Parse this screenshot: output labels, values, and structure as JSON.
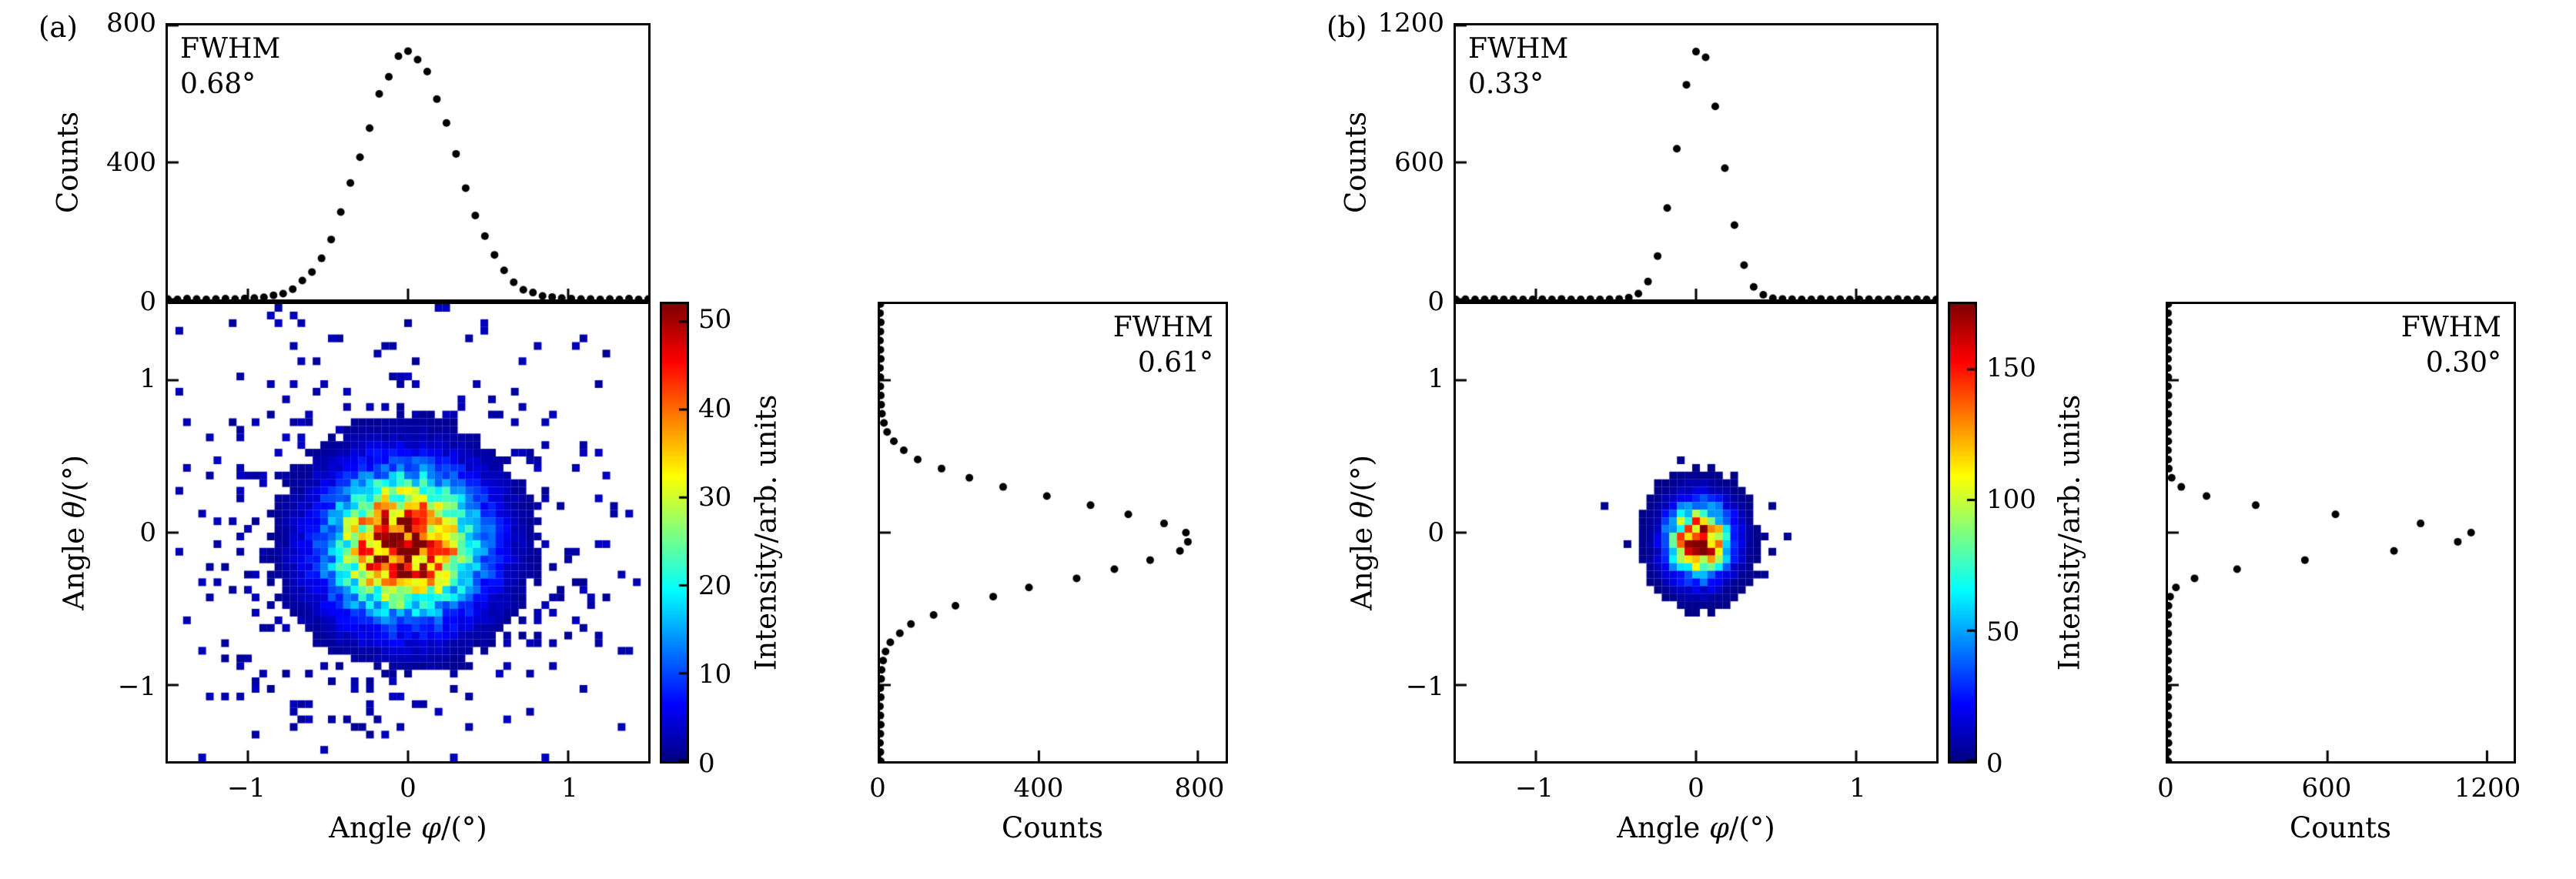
{
  "figure": {
    "background": "#ffffff",
    "accent": "#000000",
    "colormap": "jet"
  },
  "chart_data": {
    "panels": [
      {
        "label": "(a)",
        "top_profile": {
          "type": "scatter",
          "ylabel": "Counts",
          "fwhm_label": "FWHM",
          "fwhm_value": "0.68°",
          "ylim": [
            0,
            800
          ],
          "yticks": [
            0,
            400,
            800
          ],
          "ytick_labels": [
            "0",
            "400",
            "800"
          ],
          "xlim": [
            -1.5,
            1.5
          ],
          "xticks": [
            -1,
            0,
            1
          ],
          "x_start": -1.5,
          "x_step": 0.06,
          "values": [
            1,
            0,
            2,
            1,
            0,
            1,
            2,
            1,
            3,
            4,
            6,
            12,
            17,
            30,
            55,
            80,
            120,
            175,
            255,
            340,
            415,
            500,
            600,
            650,
            710,
            725,
            700,
            665,
            585,
            515,
            425,
            325,
            245,
            185,
            130,
            85,
            50,
            28,
            20,
            10,
            7,
            4,
            2,
            1,
            1,
            0,
            1,
            0,
            2,
            0,
            1
          ]
        },
        "heatmap": {
          "type": "heatmap",
          "xlabel_parts": [
            "Angle ",
            "φ",
            "/(°)"
          ],
          "ylabel_parts": [
            "Angle ",
            "θ",
            "/(°)"
          ],
          "xlim": [
            -1.5,
            1.5
          ],
          "ylim": [
            -1.5,
            1.5
          ],
          "xticks": [
            -1,
            0,
            1
          ],
          "xtick_labels": [
            "−1",
            "0",
            "1"
          ],
          "yticks": [
            1,
            0,
            -1
          ],
          "ytick_labels": [
            "1",
            "0",
            "−1"
          ],
          "bins": [
            63,
            60
          ],
          "center": [
            -0.02,
            -0.08
          ],
          "sigma": [
            0.3,
            0.3
          ],
          "peak": 52,
          "noise_prob": 0.3,
          "noise_sigma": 0.75,
          "seed": 7
        },
        "colorbar": {
          "label": "Intensity/arb. units",
          "ticks": [
            0,
            10,
            20,
            30,
            40,
            50
          ],
          "tick_labels": [
            "0",
            "10",
            "20",
            "30",
            "40",
            "50"
          ],
          "max": 52
        },
        "right_profile": {
          "type": "scatter",
          "xlabel": "Counts",
          "fwhm_label": "FWHM",
          "fwhm_value": "0.61°",
          "xlim": [
            0,
            870
          ],
          "xticks": [
            0,
            400,
            800
          ],
          "xtick_labels": [
            "0",
            "400",
            "800"
          ],
          "ylim": [
            -1.5,
            1.5
          ],
          "yticks": [
            -1,
            0,
            1
          ],
          "y_start": -1.5,
          "y_step": 0.06,
          "values": [
            2,
            1,
            0,
            1,
            2,
            1,
            0,
            2,
            1,
            3,
            4,
            8,
            14,
            26,
            50,
            78,
            135,
            190,
            285,
            375,
            495,
            590,
            680,
            755,
            775,
            770,
            715,
            625,
            530,
            420,
            310,
            225,
            155,
            95,
            60,
            35,
            18,
            10,
            5,
            3,
            2,
            1,
            1,
            0,
            2,
            1,
            0,
            1,
            2,
            0,
            1
          ]
        }
      },
      {
        "label": "(b)",
        "top_profile": {
          "type": "scatter",
          "ylabel": "Counts",
          "fwhm_label": "FWHM",
          "fwhm_value": "0.33°",
          "ylim": [
            0,
            1200
          ],
          "yticks": [
            0,
            600,
            1200
          ],
          "ytick_labels": [
            "0",
            "600",
            "1200"
          ],
          "xlim": [
            -1.5,
            1.5
          ],
          "xticks": [
            -1,
            0,
            1
          ],
          "x_start": -1.5,
          "x_step": 0.06,
          "values": [
            0,
            1,
            0,
            0,
            2,
            0,
            1,
            0,
            0,
            1,
            0,
            2,
            0,
            0,
            1,
            0,
            1,
            2,
            8,
            25,
            78,
            190,
            400,
            660,
            940,
            1085,
            1060,
            845,
            575,
            325,
            150,
            55,
            20,
            5,
            2,
            1,
            0,
            0,
            2,
            0,
            1,
            0,
            0,
            1,
            0,
            0,
            2,
            0,
            1,
            0,
            0
          ]
        },
        "heatmap": {
          "type": "heatmap",
          "xlabel_parts": [
            "Angle ",
            "φ",
            "/(°)"
          ],
          "ylabel_parts": [
            "Angle ",
            "θ",
            "/(°)"
          ],
          "xlim": [
            -1.5,
            1.5
          ],
          "ylim": [
            -1.5,
            1.5
          ],
          "xticks": [
            -1,
            0,
            1
          ],
          "xtick_labels": [
            "−1",
            "0",
            "1"
          ],
          "yticks": [
            1,
            0,
            -1
          ],
          "ytick_labels": [
            "1",
            "0",
            "−1"
          ],
          "bins": [
            63,
            60
          ],
          "center": [
            0.02,
            -0.05
          ],
          "sigma": [
            0.12,
            0.15
          ],
          "peak": 175,
          "noise_prob": 0.3,
          "noise_sigma": 0.26,
          "seed": 11
        },
        "colorbar": {
          "label": "Intensity/arb. units",
          "ticks": [
            0,
            50,
            100,
            150
          ],
          "tick_labels": [
            "0",
            "50",
            "100",
            "150"
          ],
          "max": 175
        },
        "right_profile": {
          "type": "scatter",
          "xlabel": "Counts",
          "fwhm_label": "FWHM",
          "fwhm_value": "0.30°",
          "xlim": [
            0,
            1300
          ],
          "xticks": [
            0,
            600,
            1200
          ],
          "xtick_labels": [
            "0",
            "600",
            "1200"
          ],
          "ylim": [
            -1.5,
            1.5
          ],
          "yticks": [
            -1,
            0,
            1
          ],
          "y_start": -1.5,
          "y_step": 0.06,
          "values": [
            1,
            0,
            2,
            0,
            0,
            1,
            0,
            1,
            0,
            2,
            0,
            0,
            1,
            0,
            1,
            0,
            1,
            2,
            8,
            30,
            100,
            260,
            515,
            850,
            1090,
            1140,
            950,
            630,
            330,
            145,
            50,
            14,
            3,
            1,
            0,
            1,
            0,
            0,
            1,
            0,
            2,
            0,
            1,
            0,
            0,
            1,
            0,
            0,
            2,
            0,
            1
          ]
        }
      }
    ]
  }
}
